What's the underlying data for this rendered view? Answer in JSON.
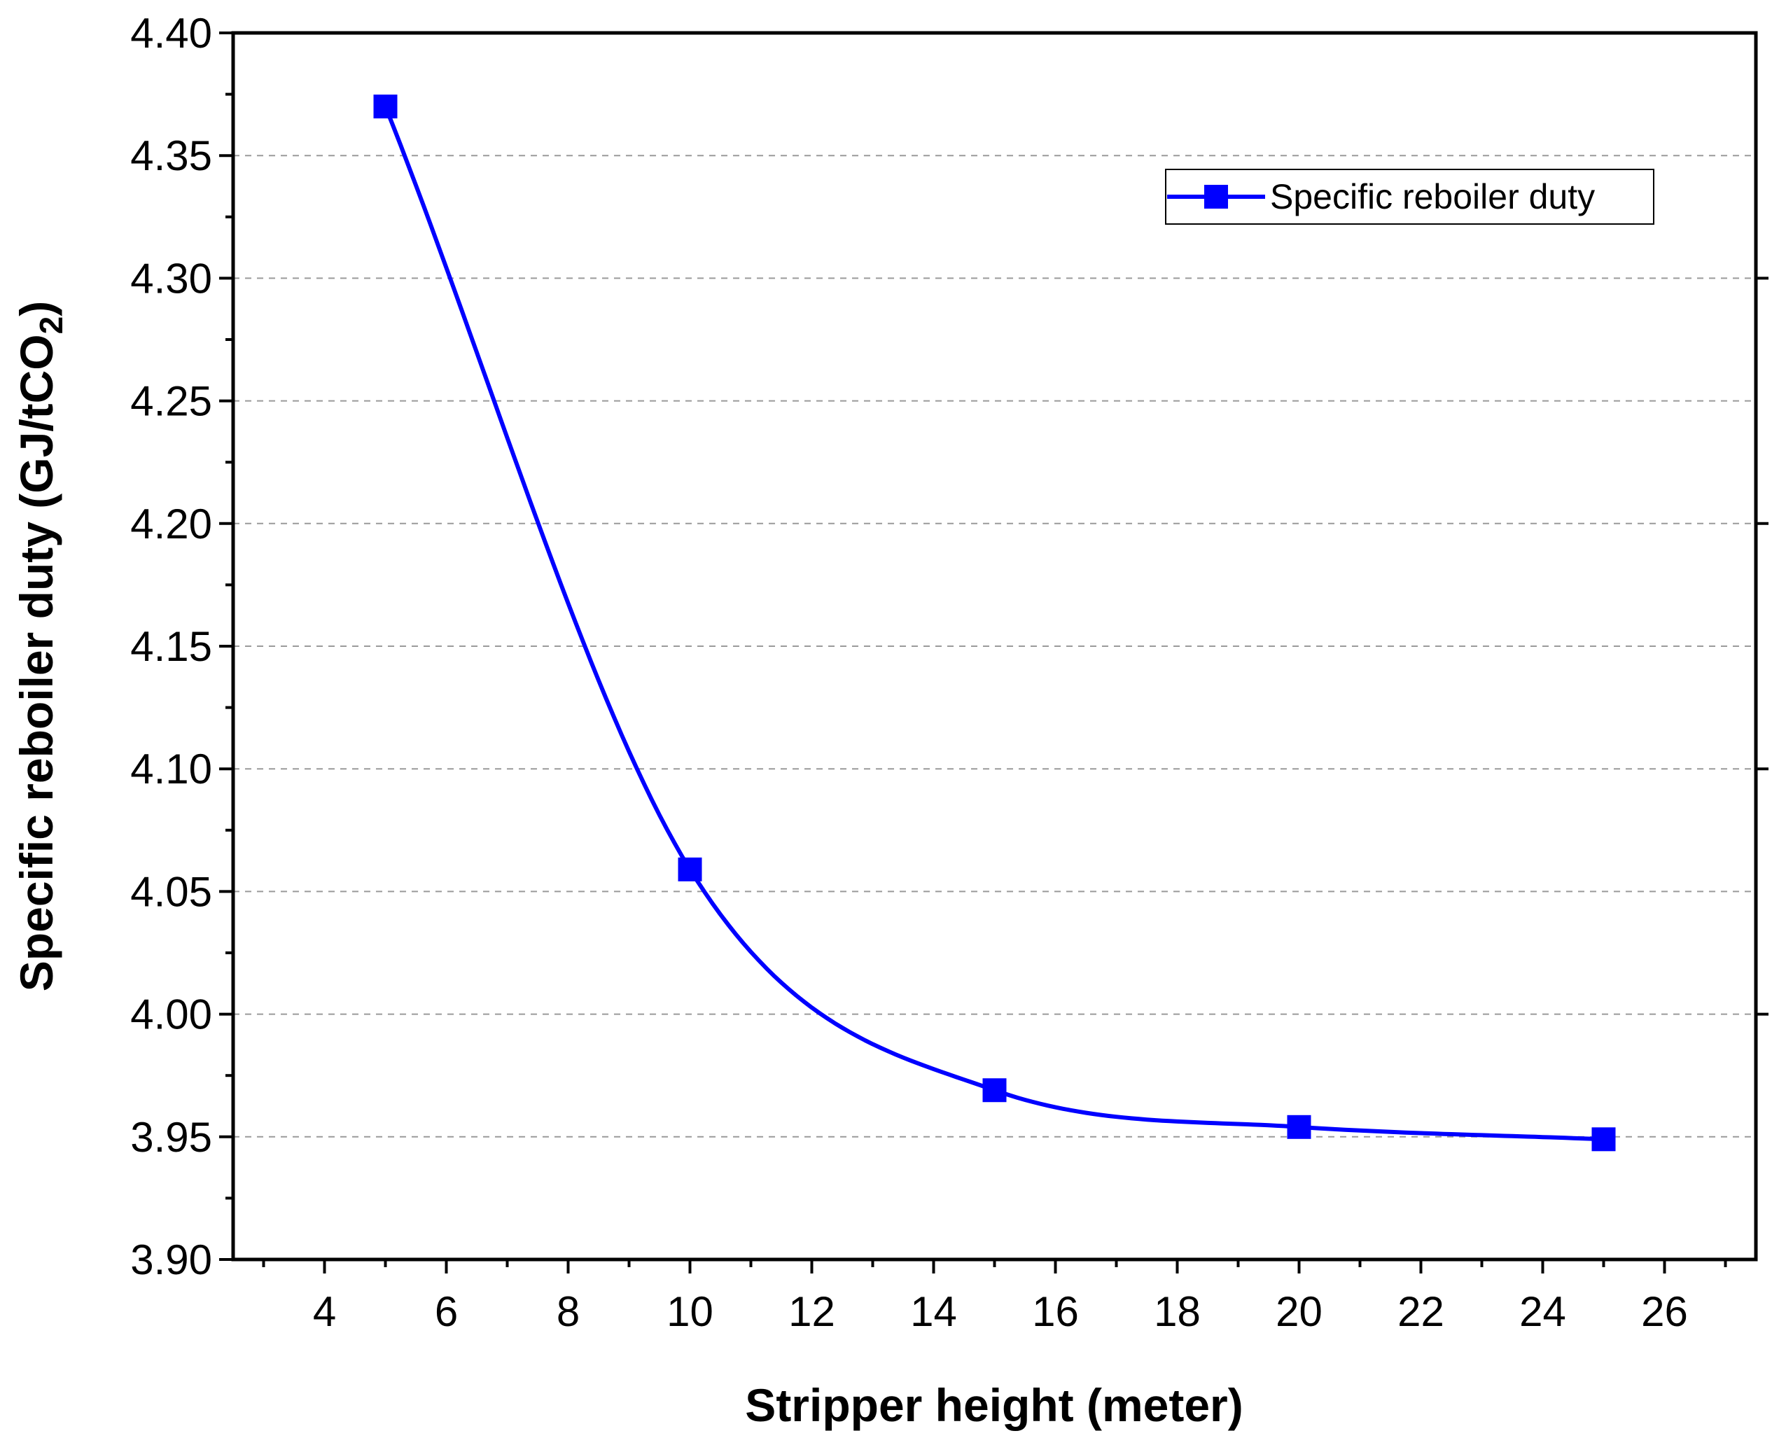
{
  "chart_data": {
    "type": "line",
    "title": "",
    "xlabel": "Stripper height (meter)",
    "ylabel_main": "Specific reboiler duty (GJ/tCO",
    "ylabel_sub": "2",
    "ylabel_close": ")",
    "xlim": [
      2.5,
      27.5
    ],
    "ylim": [
      3.9,
      4.4
    ],
    "xticks": [
      "4",
      "6",
      "8",
      "10",
      "12",
      "14",
      "16",
      "18",
      "20",
      "22",
      "24",
      "26"
    ],
    "yticks": [
      "3.90",
      "3.95",
      "4.00",
      "4.05",
      "4.10",
      "4.15",
      "4.20",
      "4.25",
      "4.30",
      "4.35",
      "4.40"
    ],
    "grid": "horizontal-dashed",
    "legend_position": "top-right",
    "series": [
      {
        "name": "Specific reboiler duty",
        "color": "#0000ff",
        "x": [
          5,
          10,
          15,
          20,
          25
        ],
        "values": [
          4.37,
          4.059,
          3.969,
          3.954,
          3.949
        ]
      }
    ]
  }
}
